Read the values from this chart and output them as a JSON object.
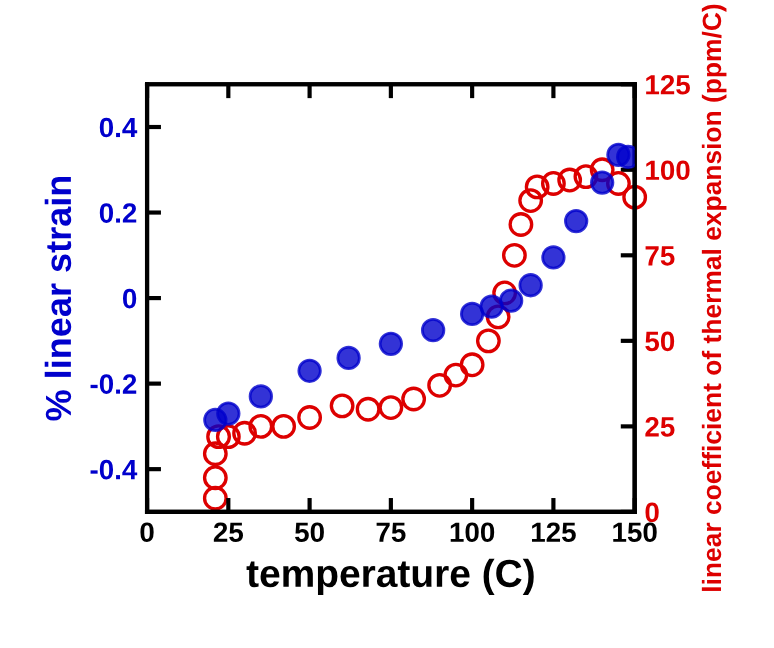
{
  "chart_data": {
    "type": "scatter",
    "xlabel": "temperature (C)",
    "ylabel": "% linear strain",
    "y2label": "linear coefficient of thermal expansion (ppm/C)",
    "xlim": [
      0,
      150
    ],
    "xticks": [
      0,
      25,
      50,
      75,
      100,
      125,
      150
    ],
    "ylim": [
      -0.5,
      0.5
    ],
    "yticks": [
      -0.4,
      -0.2,
      0,
      0.2,
      0.4
    ],
    "y2lim": [
      0,
      125
    ],
    "y2ticks": [
      0,
      25,
      50,
      75,
      100,
      125
    ],
    "series": [
      {
        "color": "#0000cc",
        "marker": "circle",
        "x": [
          21,
          25,
          35,
          50,
          62,
          75,
          88,
          100,
          106,
          112,
          118,
          125,
          132,
          140,
          145,
          148
        ],
        "values": [
          -0.285,
          -0.27,
          -0.23,
          -0.17,
          -0.14,
          -0.107,
          -0.075,
          -0.037,
          -0.02,
          -0.006,
          0.03,
          0.095,
          0.18,
          0.27,
          0.335,
          0.33
        ]
      },
      {
        "color": "#dd0000",
        "marker": "circle_open",
        "axis": "y2",
        "x": [
          21,
          21,
          21,
          22,
          25,
          30,
          35,
          42,
          50,
          60,
          68,
          75,
          82,
          90,
          95,
          100,
          105,
          108,
          110,
          113,
          115,
          118,
          120,
          125,
          130,
          135,
          140,
          145,
          150
        ],
        "values": [
          4,
          10,
          17,
          22,
          22,
          23,
          25,
          25,
          27.6,
          31,
          30,
          30.5,
          33,
          37,
          40,
          43,
          50,
          57,
          64,
          75,
          84,
          91,
          95,
          96,
          97,
          98,
          100,
          96,
          92
        ]
      }
    ],
    "grid": false
  }
}
